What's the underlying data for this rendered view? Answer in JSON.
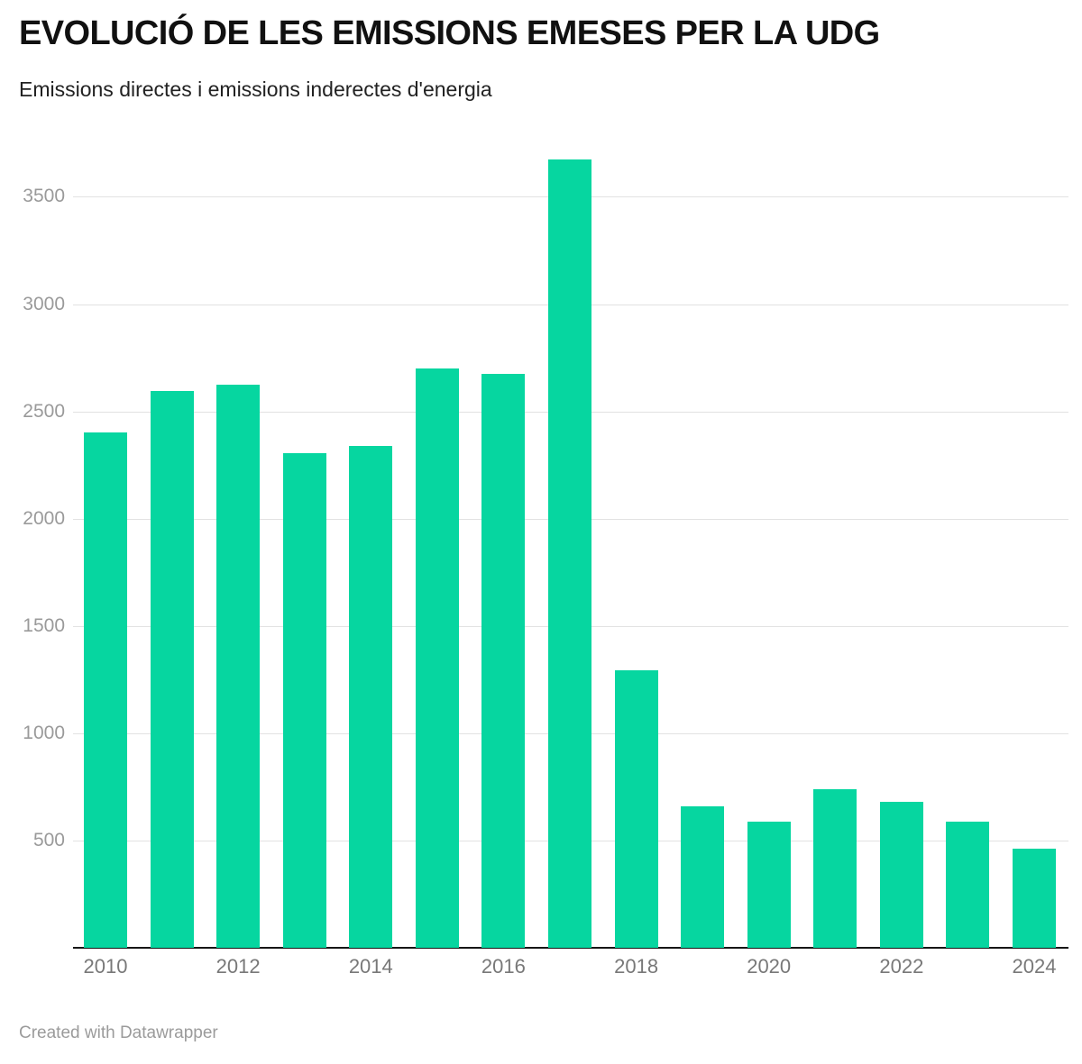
{
  "header": {
    "title": "EVOLUCIÓ DE LES EMISSIONS EMESES PER LA UDG",
    "subtitle": "Emissions directes i emissions inderectes d'energia"
  },
  "footer": {
    "credit": "Created with Datawrapper"
  },
  "colors": {
    "bar": "#06d6a0",
    "grid": "#e2e2e2",
    "axis_line": "#161616",
    "y_tick_label": "#9a9a9a",
    "x_tick_label": "#787878"
  },
  "chart_data": {
    "type": "bar",
    "title": "EVOLUCIÓ DE LES EMISSIONS EMESES PER LA UDG",
    "subtitle": "Emissions directes i emissions inderectes d'energia",
    "categories": [
      "2010",
      "2011",
      "2012",
      "2013",
      "2014",
      "2015",
      "2016",
      "2017",
      "2018",
      "2019",
      "2020",
      "2021",
      "2022",
      "2023",
      "2024"
    ],
    "values": [
      2400,
      2595,
      2625,
      2305,
      2340,
      2700,
      2675,
      3675,
      1295,
      660,
      590,
      740,
      680,
      590,
      460
    ],
    "xlabel": "",
    "ylabel": "",
    "ylim": [
      0,
      3720
    ],
    "yticks": [
      500,
      1000,
      1500,
      2000,
      2500,
      3000,
      3500
    ],
    "xticks": [
      "2010",
      "2012",
      "2014",
      "2016",
      "2018",
      "2020",
      "2022",
      "2024"
    ],
    "grid": "horizontal",
    "legend": "none",
    "bar_color": "#06d6a0"
  }
}
